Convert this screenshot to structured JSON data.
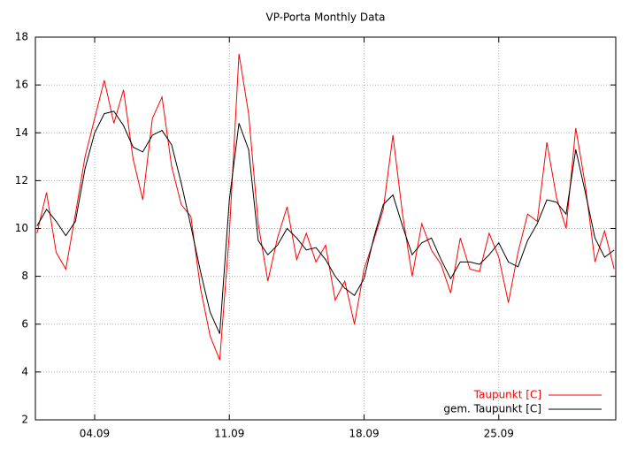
{
  "chart_data": {
    "type": "line",
    "title": "VP-Porta Monthly Data",
    "x": [
      1.0,
      1.5,
      2.0,
      2.5,
      3.0,
      3.5,
      4.0,
      4.5,
      5.0,
      5.5,
      6.0,
      6.5,
      7.0,
      7.5,
      8.0,
      8.5,
      9.0,
      9.5,
      10.0,
      10.5,
      11.0,
      11.5,
      12.0,
      12.5,
      13.0,
      13.5,
      14.0,
      14.5,
      15.0,
      15.5,
      16.0,
      16.5,
      17.0,
      17.5,
      18.0,
      18.5,
      19.0,
      19.5,
      20.0,
      20.5,
      21.0,
      21.5,
      22.0,
      22.5,
      23.0,
      23.5,
      24.0,
      24.5,
      25.0,
      25.5,
      26.0,
      26.5,
      27.0,
      27.5,
      28.0,
      28.5,
      29.0,
      29.5,
      30.0,
      30.5,
      31.0
    ],
    "series": [
      {
        "name": "Taupunkt [C]",
        "color": "#ff0000",
        "values": [
          9.8,
          11.5,
          9.0,
          8.3,
          10.6,
          13.0,
          14.6,
          16.2,
          14.4,
          15.8,
          12.9,
          11.2,
          14.6,
          15.5,
          12.6,
          11.0,
          10.5,
          7.5,
          5.5,
          4.5,
          9.8,
          17.3,
          14.8,
          10.2,
          7.8,
          9.6,
          10.9,
          8.7,
          9.8,
          8.6,
          9.3,
          7.0,
          7.8,
          6.0,
          8.3,
          9.5,
          10.8,
          13.9,
          10.6,
          8.0,
          10.2,
          9.1,
          8.5,
          7.3,
          9.6,
          8.3,
          8.2,
          9.8,
          8.8,
          6.9,
          9.0,
          10.6,
          10.3,
          13.6,
          11.3,
          10.0,
          14.2,
          11.8,
          8.6,
          9.9,
          8.3
        ]
      },
      {
        "name": "gem. Taupunkt [C]",
        "color": "#000000",
        "values": [
          10.1,
          10.8,
          10.3,
          9.7,
          10.3,
          12.5,
          14.0,
          14.8,
          14.9,
          14.3,
          13.4,
          13.2,
          13.9,
          14.1,
          13.5,
          11.9,
          10.1,
          8.2,
          6.5,
          5.6,
          11.2,
          14.4,
          13.3,
          9.5,
          8.9,
          9.3,
          10.0,
          9.6,
          9.1,
          9.2,
          8.7,
          8.0,
          7.5,
          7.2,
          7.9,
          9.6,
          11.0,
          11.4,
          10.1,
          8.9,
          9.4,
          9.6,
          8.7,
          7.9,
          8.6,
          8.6,
          8.5,
          8.9,
          9.4,
          8.6,
          8.4,
          9.5,
          10.2,
          11.2,
          11.1,
          10.6,
          13.3,
          11.5,
          9.6,
          8.8,
          9.1
        ]
      }
    ],
    "xlim": [
      0.92,
      31.08
    ],
    "xticks": [
      {
        "value": 4,
        "label": "04.09"
      },
      {
        "value": 11,
        "label": "11.09"
      },
      {
        "value": 18,
        "label": "18.09"
      },
      {
        "value": 25,
        "label": "25.09"
      }
    ],
    "ylim": [
      2,
      18
    ],
    "yticks": [
      2,
      4,
      6,
      8,
      10,
      12,
      14,
      16,
      18
    ],
    "grid": true,
    "legend": "lower right"
  }
}
